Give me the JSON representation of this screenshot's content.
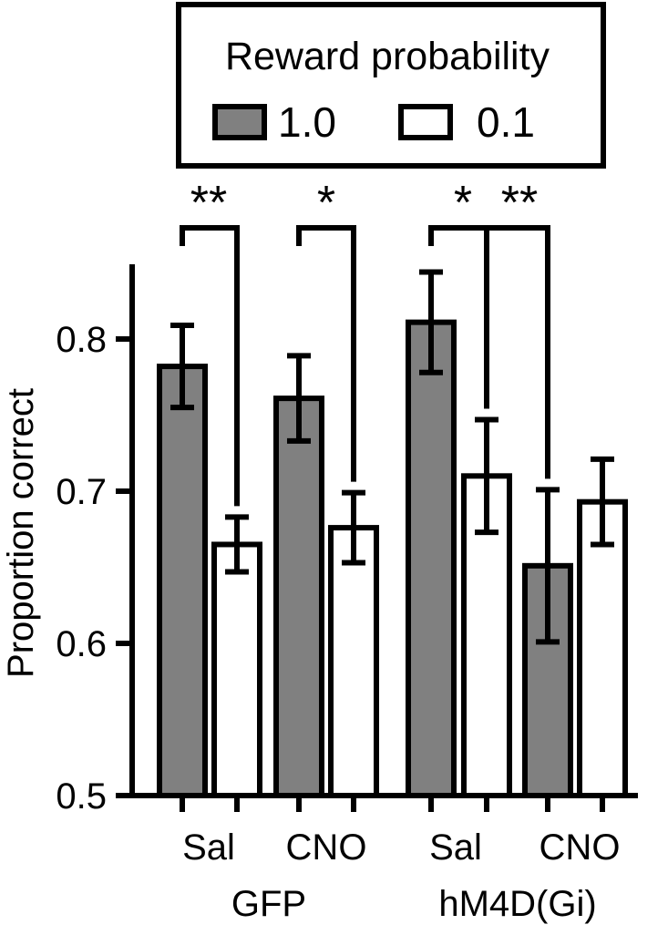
{
  "chart_data": {
    "type": "bar",
    "ylabel": "Proportion correct",
    "ylim": [
      0.5,
      0.85
    ],
    "yticks": [
      0.5,
      0.6,
      0.7,
      0.8
    ],
    "ytick_labels": [
      "0.5",
      "0.6",
      "0.7",
      "0.8"
    ],
    "legend": {
      "title": "Reward probability",
      "placement": "top",
      "entries": [
        {
          "label": "1.0",
          "color": "#808080"
        },
        {
          "label": "0.1",
          "color": "#ffffff"
        }
      ]
    },
    "groups": [
      {
        "label": "GFP",
        "subgroups": [
          "Sal",
          "CNO"
        ]
      },
      {
        "label": "hM4D(Gi)",
        "subgroups": [
          "Sal",
          "CNO"
        ]
      }
    ],
    "bars": [
      {
        "group": "GFP",
        "treatment": "Sal",
        "reward": "1.0",
        "value": 0.782,
        "error": 0.027
      },
      {
        "group": "GFP",
        "treatment": "Sal",
        "reward": "0.1",
        "value": 0.665,
        "error": 0.018
      },
      {
        "group": "GFP",
        "treatment": "CNO",
        "reward": "1.0",
        "value": 0.761,
        "error": 0.028
      },
      {
        "group": "GFP",
        "treatment": "CNO",
        "reward": "0.1",
        "value": 0.676,
        "error": 0.023
      },
      {
        "group": "hM4D(Gi)",
        "treatment": "Sal",
        "reward": "1.0",
        "value": 0.811,
        "error": 0.033
      },
      {
        "group": "hM4D(Gi)",
        "treatment": "Sal",
        "reward": "0.1",
        "value": 0.71,
        "error": 0.037
      },
      {
        "group": "hM4D(Gi)",
        "treatment": "CNO",
        "reward": "1.0",
        "value": 0.651,
        "error": 0.05
      },
      {
        "group": "hM4D(Gi)",
        "treatment": "CNO",
        "reward": "0.1",
        "value": 0.693,
        "error": 0.028
      }
    ],
    "significance": [
      {
        "from": 0,
        "to": 1,
        "label": "**"
      },
      {
        "from": 2,
        "to": 3,
        "label": "*"
      },
      {
        "from": 4,
        "to": 5,
        "label": "*"
      },
      {
        "from": 4,
        "to": 6,
        "label": "**"
      }
    ]
  }
}
